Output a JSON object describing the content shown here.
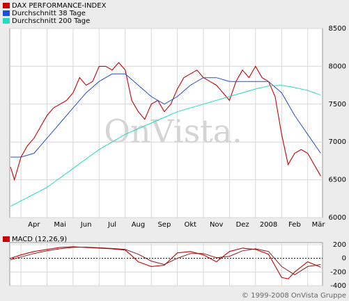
{
  "chart_data": [
    {
      "type": "line",
      "watermark": "OnVista.",
      "legend": "top-left",
      "grid": true,
      "xlim": [
        0.57,
        12.57
      ],
      "xticks": [
        {
          "value": 1,
          "label": "Apr"
        },
        {
          "value": 2,
          "label": "Mai"
        },
        {
          "value": 3,
          "label": "Jun"
        },
        {
          "value": 4,
          "label": "Jul"
        },
        {
          "value": 5,
          "label": "Aug"
        },
        {
          "value": 6,
          "label": "Sep"
        },
        {
          "value": 7,
          "label": "Okt"
        },
        {
          "value": 8,
          "label": "Nov"
        },
        {
          "value": 9,
          "label": "Dez"
        },
        {
          "value": 10,
          "label": "2008"
        },
        {
          "value": 11,
          "label": "Feb"
        },
        {
          "value": 12,
          "label": "Mär"
        }
      ],
      "ylim": [
        6000,
        8500
      ],
      "yticks": [
        6000,
        6500,
        7000,
        7500,
        8000,
        8500
      ],
      "series": [
        {
          "name": "DAX PERFORMANCE-INDEX",
          "color": "#cc0000",
          "x": [
            0.6,
            0.75,
            1.0,
            1.25,
            1.5,
            1.75,
            2.0,
            2.25,
            2.5,
            2.75,
            3.0,
            3.25,
            3.5,
            3.75,
            4.0,
            4.25,
            4.5,
            4.75,
            5.0,
            5.25,
            5.5,
            5.75,
            6.0,
            6.25,
            6.5,
            6.75,
            7.0,
            7.25,
            7.5,
            7.75,
            8.0,
            8.25,
            8.5,
            8.75,
            9.0,
            9.25,
            9.5,
            9.75,
            10.0,
            10.25,
            10.5,
            10.75,
            11.0,
            11.25,
            11.5,
            11.75,
            12.0,
            12.25,
            12.5
          ],
          "values": [
            6670,
            6500,
            6800,
            6950,
            7050,
            7200,
            7350,
            7450,
            7500,
            7550,
            7650,
            7850,
            7750,
            7800,
            8000,
            8000,
            7950,
            8050,
            7950,
            7550,
            7400,
            7300,
            7500,
            7550,
            7400,
            7500,
            7700,
            7850,
            7900,
            7950,
            7850,
            7800,
            7750,
            7650,
            7550,
            7800,
            7950,
            7850,
            8000,
            7850,
            7800,
            7600,
            7100,
            6700,
            6850,
            6900,
            6850,
            6700,
            6550
          ]
        },
        {
          "name": "Durchschnitt 38 Tage",
          "color": "#1f4fd8",
          "x": [
            0.6,
            1.0,
            1.5,
            2.0,
            2.5,
            3.0,
            3.5,
            4.0,
            4.5,
            5.0,
            5.5,
            6.0,
            6.5,
            7.0,
            7.5,
            8.0,
            8.5,
            9.0,
            9.5,
            10.0,
            10.5,
            11.0,
            11.5,
            12.0,
            12.5
          ],
          "values": [
            6800,
            6800,
            6850,
            7050,
            7250,
            7450,
            7650,
            7800,
            7900,
            7900,
            7750,
            7600,
            7500,
            7600,
            7750,
            7850,
            7850,
            7800,
            7800,
            7800,
            7800,
            7650,
            7350,
            7100,
            6850
          ]
        },
        {
          "name": "Durchschnitt 200 Tage",
          "color": "#22ddc0",
          "x": [
            0.6,
            1.0,
            2.0,
            3.0,
            4.0,
            5.0,
            6.0,
            7.0,
            8.0,
            9.0,
            10.0,
            10.5,
            11.0,
            11.5,
            12.0,
            12.5
          ],
          "values": [
            6150,
            6220,
            6400,
            6650,
            6900,
            7100,
            7250,
            7400,
            7500,
            7600,
            7700,
            7740,
            7750,
            7720,
            7680,
            7620
          ]
        }
      ]
    },
    {
      "type": "line",
      "legend": "top-left",
      "grid": true,
      "xlim": [
        0.57,
        12.57
      ],
      "xticks": [
        1,
        2,
        3,
        4,
        5,
        6,
        7,
        8,
        9,
        10,
        11,
        12
      ],
      "ylim": [
        -400,
        230
      ],
      "yticks": [
        -400,
        -200,
        0,
        200
      ],
      "series": [
        {
          "name": "MACD (12,26,9)",
          "color": "#cc0000",
          "x": [
            0.6,
            1.0,
            1.5,
            2.0,
            2.5,
            3.0,
            3.5,
            4.0,
            4.5,
            5.0,
            5.25,
            5.5,
            6.0,
            6.5,
            7.0,
            7.5,
            8.0,
            8.5,
            9.0,
            9.5,
            10.0,
            10.5,
            11.0,
            11.25,
            11.5,
            12.0,
            12.5
          ],
          "values": [
            0,
            50,
            100,
            130,
            160,
            170,
            160,
            150,
            140,
            120,
            40,
            -50,
            -120,
            -100,
            80,
            100,
            50,
            -50,
            100,
            150,
            130,
            60,
            -280,
            -300,
            -200,
            -50,
            -130
          ]
        },
        {
          "color": "#8b1a1a",
          "x": [
            0.6,
            1.0,
            1.5,
            2.0,
            2.5,
            3.0,
            3.5,
            4.0,
            4.5,
            5.0,
            5.5,
            6.0,
            6.5,
            7.0,
            7.5,
            8.0,
            8.5,
            9.0,
            9.5,
            10.0,
            10.5,
            11.0,
            11.5,
            12.0,
            12.5
          ],
          "values": [
            -20,
            20,
            70,
            110,
            140,
            160,
            165,
            155,
            145,
            130,
            60,
            -40,
            -90,
            0,
            70,
            70,
            10,
            30,
            110,
            140,
            100,
            -120,
            -240,
            -120,
            -90
          ]
        }
      ]
    }
  ],
  "footer": "© 1999-2008 OnVista Gruppe"
}
